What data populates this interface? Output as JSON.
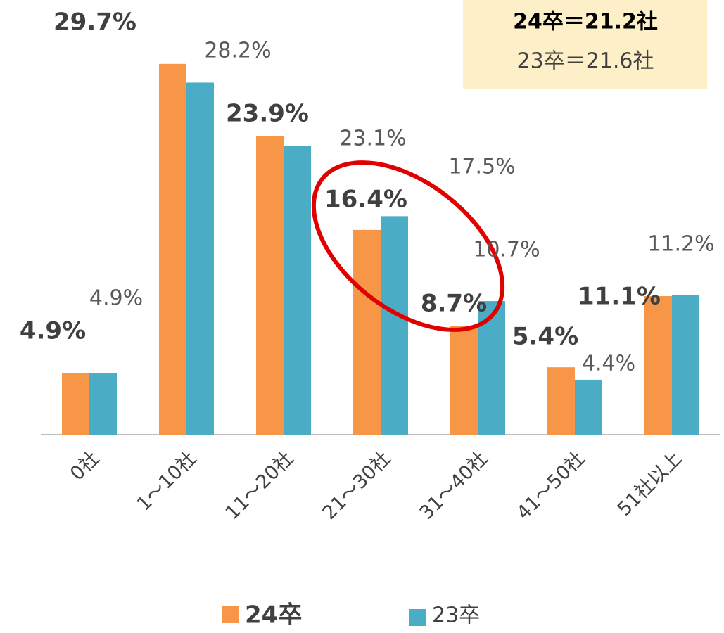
{
  "chart_data": {
    "type": "bar",
    "categories": [
      "0社",
      "1～10社",
      "11～20社",
      "21～30社",
      "31～40社",
      "41～50社",
      "51社以上"
    ],
    "series": [
      {
        "name": "24卒",
        "color": "#f79646",
        "values": [
          4.9,
          29.7,
          23.9,
          16.4,
          8.7,
          5.4,
          11.1
        ],
        "value_labels": [
          "4.9%",
          "29.7%",
          "23.9%",
          "16.4%",
          "8.7%",
          "5.4%",
          "11.1%"
        ]
      },
      {
        "name": "23卒",
        "color": "#4bacc6",
        "values": [
          4.9,
          28.2,
          23.1,
          17.5,
          10.7,
          4.4,
          11.2
        ],
        "value_labels": [
          "4.9%",
          "28.2%",
          "23.1%",
          "17.5%",
          "10.7%",
          "4.4%",
          "11.2%"
        ]
      }
    ],
    "annotations": [
      "24卒＝21.2社",
      "23卒＝21.6社"
    ]
  }
}
